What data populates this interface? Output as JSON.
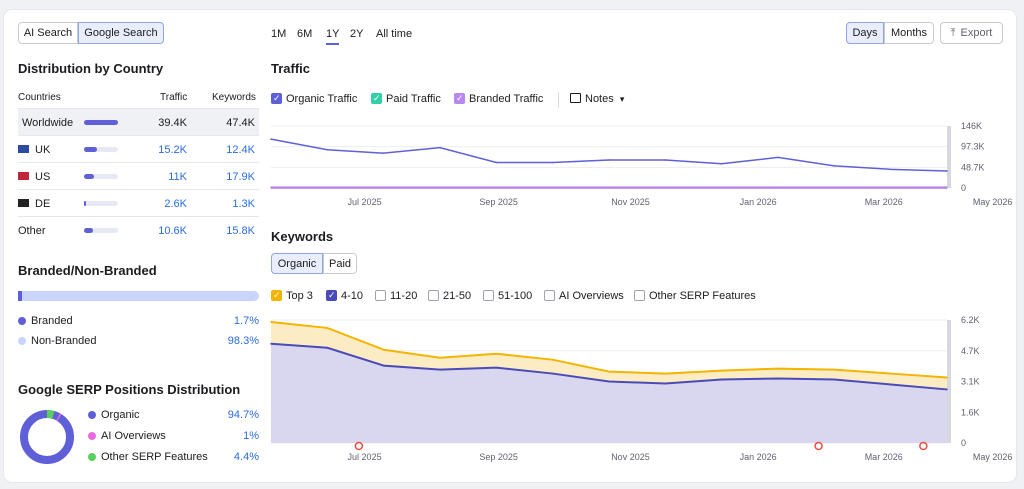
{
  "search_toggle": {
    "ai_label": "AI Search",
    "google_label": "Google Search"
  },
  "ranges": [
    "1M",
    "6M",
    "1Y",
    "2Y",
    "All time"
  ],
  "granularity": {
    "days": "Days",
    "months": "Months"
  },
  "export_label": "Export",
  "country": {
    "title": "Distribution by Country",
    "headers": {
      "countries": "Countries",
      "traffic": "Traffic",
      "keywords": "Keywords"
    },
    "rows": [
      {
        "name": "Worldwide",
        "traffic": "39.4K",
        "keywords": "47.4K",
        "share": 1.0
      },
      {
        "name": "UK",
        "traffic": "15.2K",
        "keywords": "12.4K",
        "share": 0.39
      },
      {
        "name": "US",
        "traffic": "11K",
        "keywords": "17.9K",
        "share": 0.28
      },
      {
        "name": "DE",
        "traffic": "2.6K",
        "keywords": "1.3K",
        "share": 0.07
      },
      {
        "name": "Other",
        "traffic": "10.6K",
        "keywords": "15.8K",
        "share": 0.27
      }
    ]
  },
  "branded": {
    "title": "Branded/Non-Branded",
    "items": [
      {
        "label": "Branded",
        "value": "1.7%",
        "color": "#5f60d8"
      },
      {
        "label": "Non-Branded",
        "value": "98.3%",
        "color": "#c9d4fb"
      }
    ],
    "branded_fraction": 0.017
  },
  "serp": {
    "title": "Google SERP Positions Distribution",
    "items": [
      {
        "label": "Organic",
        "value": "94.7%",
        "color": "#5f60d8"
      },
      {
        "label": "AI Overviews",
        "value": "1%",
        "color": "#e86ce0"
      },
      {
        "label": "Other SERP Features",
        "value": "4.4%",
        "color": "#57d05d"
      }
    ]
  },
  "traffic_section": {
    "title": "Traffic",
    "legend": [
      {
        "label": "Organic Traffic",
        "color": "#5f60d8",
        "checked": true
      },
      {
        "label": "Paid Traffic",
        "color": "#33cfa8",
        "checked": true
      },
      {
        "label": "Branded Traffic",
        "color": "#b888f0",
        "checked": true
      }
    ],
    "notes_label": "Notes"
  },
  "keywords_section": {
    "title": "Keywords",
    "tabs": {
      "organic": "Organic",
      "paid": "Paid"
    },
    "filters": [
      {
        "label": "Top 3",
        "checked": true,
        "color": "#f4b400"
      },
      {
        "label": "4-10",
        "checked": true,
        "color": "#4a4ab8"
      },
      {
        "label": "11-20",
        "checked": false
      },
      {
        "label": "21-50",
        "checked": false
      },
      {
        "label": "51-100",
        "checked": false
      },
      {
        "label": "AI Overviews",
        "checked": false
      },
      {
        "label": "Other SERP Features",
        "checked": false
      }
    ]
  },
  "x_ticks": [
    "Jul 2025",
    "Sep 2025",
    "Nov 2025",
    "Jan 2026",
    "Mar 2026",
    "May 2026"
  ],
  "chart_data": [
    {
      "type": "line",
      "title": "Traffic",
      "y_ticks": [
        "146K",
        "97.3K",
        "48.7K",
        "0"
      ],
      "ylim": [
        0,
        146000
      ],
      "x": [
        "2025-06",
        "2025-07",
        "2025-08",
        "2025-09",
        "2025-10",
        "2025-11",
        "2025-12",
        "2026-01",
        "2026-02",
        "2026-03",
        "2026-04",
        "2026-05",
        "2026-06"
      ],
      "series": [
        {
          "name": "Organic Traffic",
          "values": [
            115000,
            90000,
            82000,
            95000,
            60000,
            60000,
            66000,
            66000,
            57000,
            72000,
            52000,
            44000,
            40000
          ]
        },
        {
          "name": "Branded Traffic",
          "values": [
            1000,
            1000,
            1000,
            1000,
            1000,
            1000,
            1000,
            1000,
            1000,
            1000,
            1000,
            1000,
            1000
          ]
        }
      ]
    },
    {
      "type": "area",
      "title": "Keywords",
      "y_ticks": [
        "6.2K",
        "4.7K",
        "3.1K",
        "1.6K",
        "0"
      ],
      "ylim": [
        0,
        6200
      ],
      "x": [
        "2025-06",
        "2025-07",
        "2025-08",
        "2025-09",
        "2025-10",
        "2025-11",
        "2025-12",
        "2026-01",
        "2026-02",
        "2026-03",
        "2026-04",
        "2026-05",
        "2026-06"
      ],
      "series": [
        {
          "name": "Top 3",
          "values": [
            6100,
            5800,
            4700,
            4300,
            4500,
            4200,
            3600,
            3500,
            3650,
            3750,
            3700,
            3500,
            3300
          ]
        },
        {
          "name": "4-10",
          "values": [
            5000,
            4800,
            3900,
            3700,
            3800,
            3500,
            3100,
            3000,
            3200,
            3250,
            3200,
            2950,
            2700
          ]
        }
      ]
    }
  ]
}
